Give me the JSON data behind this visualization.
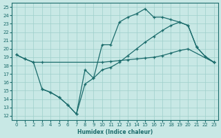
{
  "xlabel": "Humidex (Indice chaleur)",
  "xlim": [
    -0.5,
    23.5
  ],
  "ylim": [
    11.5,
    25.5
  ],
  "xticks": [
    0,
    1,
    2,
    3,
    4,
    5,
    6,
    7,
    8,
    9,
    10,
    11,
    12,
    13,
    14,
    15,
    16,
    17,
    18,
    19,
    20,
    21,
    22,
    23
  ],
  "yticks": [
    12,
    13,
    14,
    15,
    16,
    17,
    18,
    19,
    20,
    21,
    22,
    23,
    24,
    25
  ],
  "bg_color": "#c8e8e5",
  "grid_color": "#9ecfcb",
  "line_color": "#1a6b6b",
  "line1_x": [
    0,
    1,
    2,
    3,
    10,
    11,
    12,
    13,
    14,
    15,
    16,
    17,
    18,
    19,
    20,
    23
  ],
  "line1_y": [
    19.3,
    18.8,
    18.4,
    18.4,
    18.4,
    18.5,
    18.6,
    18.7,
    18.8,
    18.9,
    19.0,
    19.2,
    19.5,
    19.8,
    20.0,
    18.4
  ],
  "line2_x": [
    0,
    1,
    2,
    3,
    4,
    5,
    6,
    7,
    8,
    9,
    10,
    11,
    12,
    13,
    14,
    15,
    16,
    17,
    18,
    19,
    20,
    21,
    22,
    23
  ],
  "line2_y": [
    19.3,
    18.8,
    18.4,
    15.2,
    14.8,
    14.2,
    13.3,
    12.2,
    17.5,
    16.5,
    20.5,
    20.5,
    23.2,
    23.8,
    24.2,
    24.8,
    23.8,
    23.8,
    23.5,
    23.2,
    22.8,
    20.2,
    19.1,
    18.4
  ],
  "line3_x": [
    3,
    4,
    5,
    6,
    7,
    8,
    9,
    10,
    11,
    12,
    13,
    14,
    15,
    16,
    17,
    18,
    19,
    20,
    21,
    22,
    23
  ],
  "line3_y": [
    15.2,
    14.8,
    14.2,
    13.3,
    12.2,
    15.8,
    16.5,
    17.5,
    17.8,
    18.4,
    19.2,
    20.0,
    20.8,
    21.5,
    22.2,
    22.8,
    23.2,
    22.8,
    20.2,
    19.1,
    18.4
  ]
}
